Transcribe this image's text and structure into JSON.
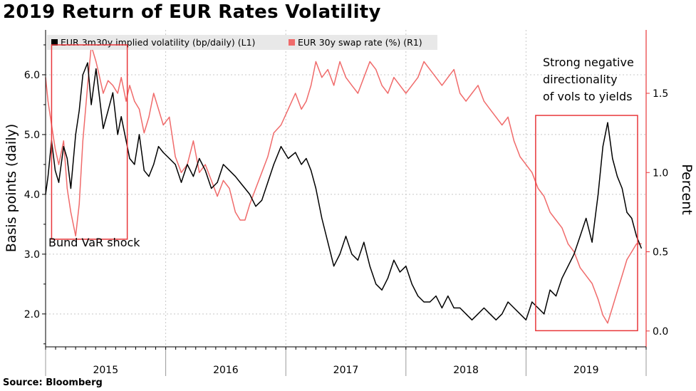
{
  "header": {
    "title": "2019 Return of EUR Rates Volatility"
  },
  "footer": {
    "source": "Source: Bloomberg"
  },
  "colors": {
    "vol": "#000000",
    "rate": "#f06b6b",
    "box": "#e8373a",
    "grid": "#c8c8c8"
  },
  "chart_data": {
    "type": "line",
    "title": "2019 Return of EUR Rates Volatility",
    "ylabel_left": "Basis points (daily)",
    "ylabel_right": "Percent",
    "ylim_left": [
      1.45,
      6.75
    ],
    "ylim_right": [
      -0.1,
      1.9
    ],
    "yticks_left": [
      "2.0",
      "3.0",
      "4.0",
      "5.0",
      "6.0"
    ],
    "yticks_right": [
      "0.0",
      "0.5",
      "1.0",
      "1.5"
    ],
    "xticks": [
      "2015",
      "2016",
      "2017",
      "2018",
      "2019"
    ],
    "xlim": [
      2015.0,
      2020.0
    ],
    "grid": true,
    "legend_position": "top-left",
    "series": [
      {
        "name": "EUR 3m30y implied volatility (bp/daily) (L1)",
        "axis": "left",
        "x": [
          2015.0,
          2015.02,
          2015.05,
          2015.08,
          2015.11,
          2015.15,
          2015.18,
          2015.21,
          2015.25,
          2015.28,
          2015.31,
          2015.35,
          2015.38,
          2015.42,
          2015.45,
          2015.48,
          2015.52,
          2015.56,
          2015.6,
          2015.63,
          2015.67,
          2015.7,
          2015.74,
          2015.78,
          2015.82,
          2015.86,
          2015.9,
          2015.94,
          2015.98,
          2016.03,
          2016.08,
          2016.13,
          2016.18,
          2016.23,
          2016.28,
          2016.33,
          2016.38,
          2016.43,
          2016.48,
          2016.53,
          2016.58,
          2016.62,
          2016.66,
          2016.7,
          2016.75,
          2016.8,
          2016.85,
          2016.9,
          2016.96,
          2017.02,
          2017.08,
          2017.13,
          2017.17,
          2017.21,
          2017.25,
          2017.3,
          2017.35,
          2017.4,
          2017.45,
          2017.5,
          2017.55,
          2017.6,
          2017.65,
          2017.7,
          2017.75,
          2017.8,
          2017.85,
          2017.9,
          2017.95,
          2018.0,
          2018.05,
          2018.1,
          2018.15,
          2018.2,
          2018.25,
          2018.3,
          2018.35,
          2018.4,
          2018.45,
          2018.5,
          2018.55,
          2018.6,
          2018.65,
          2018.7,
          2018.75,
          2018.8,
          2018.85,
          2018.9,
          2018.95,
          2019.0,
          2019.05,
          2019.1,
          2019.15,
          2019.2,
          2019.25,
          2019.3,
          2019.35,
          2019.4,
          2019.45,
          2019.5,
          2019.55,
          2019.6,
          2019.64,
          2019.68,
          2019.72,
          2019.76,
          2019.8,
          2019.84,
          2019.88,
          2019.92,
          2019.96
        ],
        "y": [
          4.0,
          4.3,
          4.9,
          4.4,
          4.2,
          4.8,
          4.6,
          4.1,
          5.0,
          5.4,
          6.0,
          6.2,
          5.5,
          6.1,
          5.6,
          5.1,
          5.4,
          5.7,
          5.0,
          5.3,
          4.9,
          4.6,
          4.5,
          5.0,
          4.4,
          4.3,
          4.5,
          4.8,
          4.7,
          4.6,
          4.5,
          4.2,
          4.5,
          4.3,
          4.6,
          4.4,
          4.1,
          4.2,
          4.5,
          4.4,
          4.3,
          4.2,
          4.1,
          4.0,
          3.8,
          3.9,
          4.2,
          4.5,
          4.8,
          4.6,
          4.7,
          4.5,
          4.6,
          4.4,
          4.1,
          3.6,
          3.2,
          2.8,
          3.0,
          3.3,
          3.0,
          2.9,
          3.2,
          2.8,
          2.5,
          2.4,
          2.6,
          2.9,
          2.7,
          2.8,
          2.5,
          2.3,
          2.2,
          2.2,
          2.3,
          2.1,
          2.3,
          2.1,
          2.1,
          2.0,
          1.9,
          2.0,
          2.1,
          2.0,
          1.9,
          2.0,
          2.2,
          2.1,
          2.0,
          1.9,
          2.2,
          2.1,
          2.0,
          2.4,
          2.3,
          2.6,
          2.8,
          3.0,
          3.3,
          3.6,
          3.2,
          4.0,
          4.8,
          5.2,
          4.6,
          4.3,
          4.1,
          3.7,
          3.6,
          3.3,
          3.1
        ]
      },
      {
        "name": "EUR 30y swap rate (%) (R1)",
        "axis": "right",
        "x": [
          2015.0,
          2015.02,
          2015.05,
          2015.08,
          2015.11,
          2015.15,
          2015.18,
          2015.21,
          2015.25,
          2015.28,
          2015.31,
          2015.35,
          2015.38,
          2015.42,
          2015.45,
          2015.48,
          2015.52,
          2015.56,
          2015.6,
          2015.63,
          2015.67,
          2015.7,
          2015.74,
          2015.78,
          2015.82,
          2015.86,
          2015.9,
          2015.94,
          2015.98,
          2016.03,
          2016.08,
          2016.13,
          2016.18,
          2016.23,
          2016.28,
          2016.33,
          2016.38,
          2016.43,
          2016.48,
          2016.53,
          2016.58,
          2016.62,
          2016.66,
          2016.7,
          2016.75,
          2016.8,
          2016.85,
          2016.9,
          2016.96,
          2017.02,
          2017.08,
          2017.13,
          2017.17,
          2017.21,
          2017.25,
          2017.3,
          2017.35,
          2017.4,
          2017.45,
          2017.5,
          2017.55,
          2017.6,
          2017.65,
          2017.7,
          2017.75,
          2017.8,
          2017.85,
          2017.9,
          2017.95,
          2018.0,
          2018.05,
          2018.1,
          2018.15,
          2018.2,
          2018.25,
          2018.3,
          2018.35,
          2018.4,
          2018.45,
          2018.5,
          2018.55,
          2018.6,
          2018.65,
          2018.7,
          2018.75,
          2018.8,
          2018.85,
          2018.9,
          2018.95,
          2019.0,
          2019.05,
          2019.1,
          2019.15,
          2019.2,
          2019.25,
          2019.3,
          2019.35,
          2019.4,
          2019.45,
          2019.5,
          2019.55,
          2019.6,
          2019.64,
          2019.68,
          2019.72,
          2019.76,
          2019.8,
          2019.84,
          2019.88,
          2019.92,
          2019.96
        ],
        "y": [
          1.6,
          1.45,
          1.3,
          1.15,
          1.05,
          1.2,
          0.9,
          0.75,
          0.6,
          0.8,
          1.2,
          1.55,
          1.8,
          1.7,
          1.6,
          1.5,
          1.58,
          1.55,
          1.5,
          1.6,
          1.45,
          1.55,
          1.45,
          1.4,
          1.25,
          1.35,
          1.5,
          1.4,
          1.3,
          1.35,
          1.1,
          1.0,
          1.05,
          1.2,
          1.0,
          1.05,
          0.95,
          0.85,
          0.95,
          0.9,
          0.75,
          0.7,
          0.7,
          0.8,
          0.9,
          1.0,
          1.1,
          1.25,
          1.3,
          1.4,
          1.5,
          1.4,
          1.45,
          1.55,
          1.7,
          1.6,
          1.65,
          1.55,
          1.7,
          1.6,
          1.55,
          1.5,
          1.6,
          1.7,
          1.65,
          1.55,
          1.5,
          1.6,
          1.55,
          1.5,
          1.55,
          1.6,
          1.7,
          1.65,
          1.6,
          1.55,
          1.6,
          1.65,
          1.5,
          1.45,
          1.5,
          1.55,
          1.45,
          1.4,
          1.35,
          1.3,
          1.35,
          1.2,
          1.1,
          1.05,
          1.0,
          0.9,
          0.85,
          0.75,
          0.7,
          0.65,
          0.55,
          0.5,
          0.4,
          0.35,
          0.3,
          0.2,
          0.1,
          0.05,
          0.15,
          0.25,
          0.35,
          0.45,
          0.5,
          0.55,
          0.55
        ]
      }
    ],
    "annotations": [
      {
        "text": "Bund VaR shock",
        "box_x": [
          2015.05,
          2015.68
        ],
        "box_y_left": [
          3.25,
          6.5
        ]
      },
      {
        "text": "Strong negative directionality of vols to yields",
        "lines": [
          "Strong negative",
          "directionality",
          "of vols to yields"
        ],
        "box_x": [
          2019.08,
          2020.0
        ],
        "box_y_left": [
          1.72,
          5.32
        ]
      }
    ]
  }
}
